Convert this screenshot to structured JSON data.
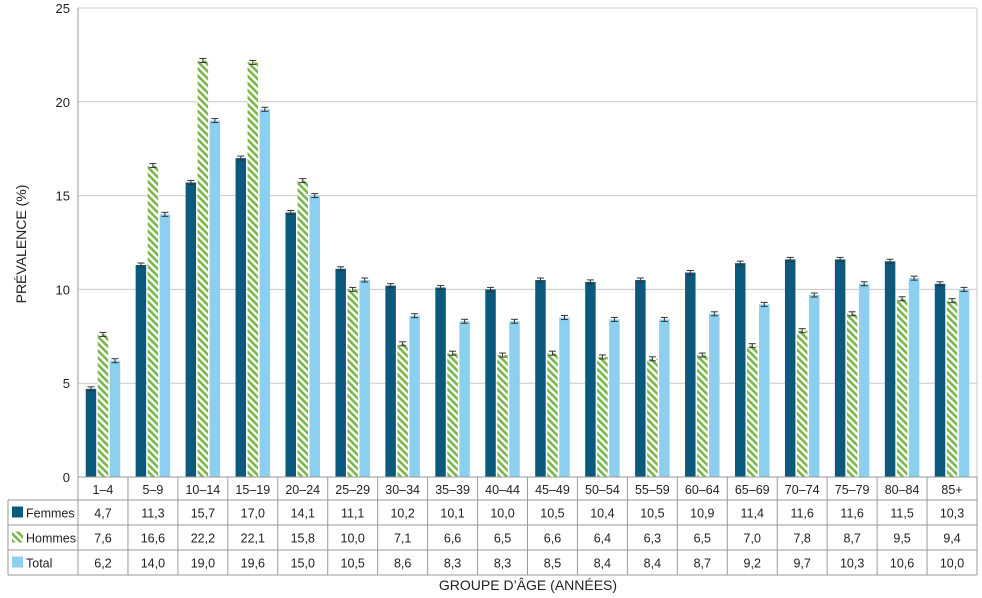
{
  "chart_data": {
    "type": "bar",
    "ylabel": "PRÉVALENCE (%)",
    "xlabel": "GROUPE D’ÂGE (ANNÉES)",
    "ylim": [
      0,
      25
    ],
    "yticks": [
      0,
      5,
      10,
      15,
      20,
      25
    ],
    "grid": true,
    "legend": "data-table",
    "categories": [
      "1–4",
      "5–9",
      "10–14",
      "15–19",
      "20–24",
      "25–29",
      "30–34",
      "35–39",
      "40–44",
      "45–49",
      "50–54",
      "55–59",
      "60–64",
      "65–69",
      "70–74",
      "75–79",
      "80–84",
      "85+"
    ],
    "series": [
      {
        "name": "Femmes",
        "color": "#0b5a7e",
        "pattern": "solid",
        "values": [
          4.7,
          11.3,
          15.7,
          17.0,
          14.1,
          11.1,
          10.2,
          10.1,
          10.0,
          10.5,
          10.4,
          10.5,
          10.9,
          11.4,
          11.6,
          11.6,
          11.5,
          10.3
        ],
        "labels": [
          "4,7",
          "11,3",
          "15,7",
          "17,0",
          "14,1",
          "11,1",
          "10,2",
          "10,1",
          "10,0",
          "10,5",
          "10,4",
          "10,5",
          "10,9",
          "11,4",
          "11,6",
          "11,6",
          "11,5",
          "10,3"
        ]
      },
      {
        "name": "Hommes",
        "color": "#7ab648",
        "pattern": "hatch",
        "values": [
          7.6,
          16.6,
          22.2,
          22.1,
          15.8,
          10.0,
          7.1,
          6.6,
          6.5,
          6.6,
          6.4,
          6.3,
          6.5,
          7.0,
          7.8,
          8.7,
          9.5,
          9.4
        ],
        "labels": [
          "7,6",
          "16,6",
          "22,2",
          "22,1",
          "15,8",
          "10,0",
          "7,1",
          "6,6",
          "6,5",
          "6,6",
          "6,4",
          "6,3",
          "6,5",
          "7,0",
          "7,8",
          "8,7",
          "9,5",
          "9,4"
        ]
      },
      {
        "name": "Total",
        "color": "#8dcfee",
        "pattern": "solid",
        "values": [
          6.2,
          14.0,
          19.0,
          19.6,
          15.0,
          10.5,
          8.6,
          8.3,
          8.3,
          8.5,
          8.4,
          8.4,
          8.7,
          9.2,
          9.7,
          10.3,
          10.6,
          10.0
        ],
        "labels": [
          "6,2",
          "14,0",
          "19,0",
          "19,6",
          "15,0",
          "10,5",
          "8,6",
          "8,3",
          "8,3",
          "8,5",
          "8,4",
          "8,4",
          "8,7",
          "9,2",
          "9,7",
          "10,3",
          "10,6",
          "10,0"
        ]
      }
    ]
  }
}
